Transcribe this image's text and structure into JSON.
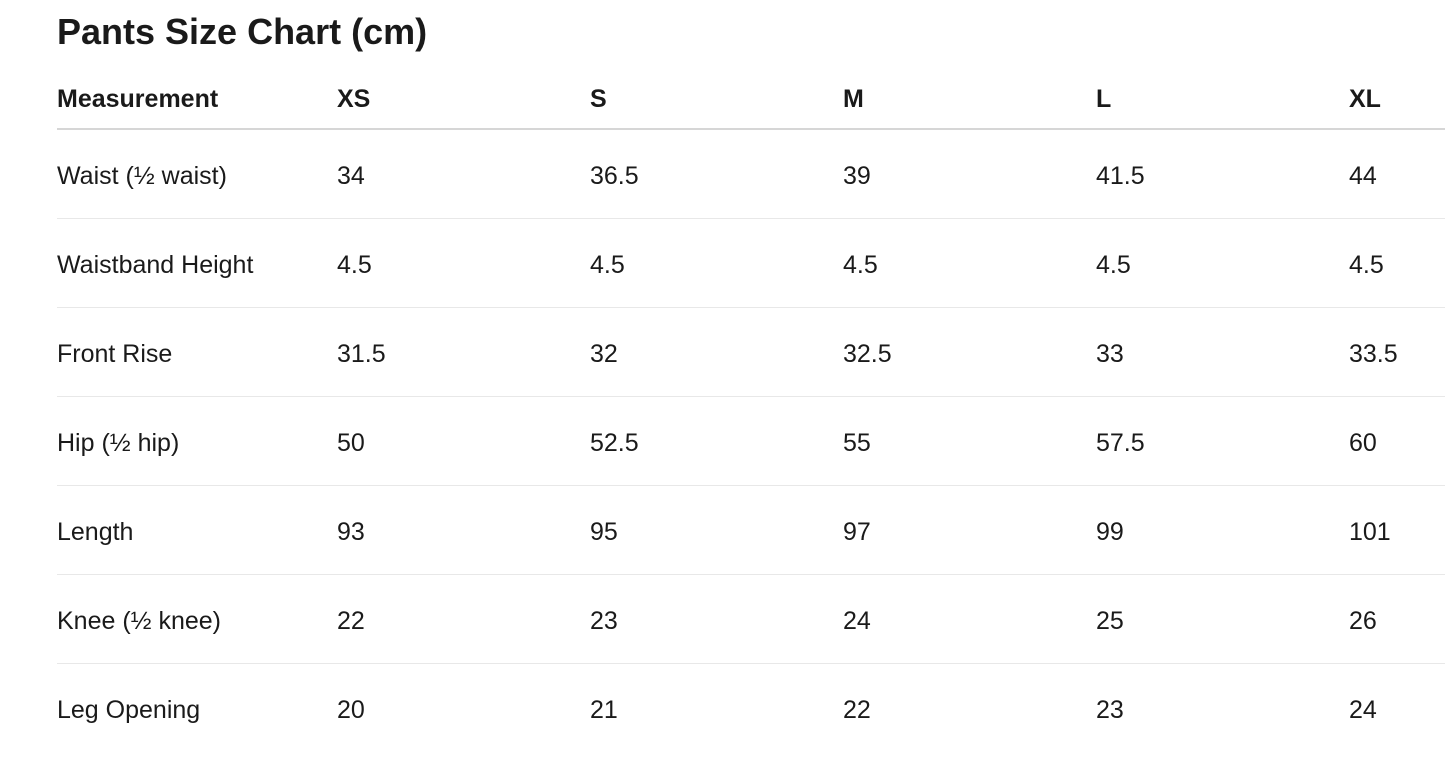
{
  "header": {
    "title": "Pants Size Chart (cm)"
  },
  "table": {
    "columns": [
      "Measurement",
      "XS",
      "S",
      "M",
      "L",
      "XL"
    ],
    "rows": [
      [
        "Waist (½ waist)",
        34,
        36.5,
        39,
        41.5,
        44
      ],
      [
        "Waistband Height",
        4.5,
        4.5,
        4.5,
        4.5,
        4.5
      ],
      [
        "Front Rise",
        31.5,
        32,
        32.5,
        33,
        33.5
      ],
      [
        "Hip (½ hip)",
        50,
        52.5,
        55,
        57.5,
        60
      ],
      [
        "Length",
        93,
        95,
        97,
        99,
        101
      ],
      [
        "Knee (½ knee)",
        22,
        23,
        24,
        25,
        26
      ],
      [
        "Leg Opening",
        20,
        21,
        22,
        23,
        24
      ]
    ]
  }
}
